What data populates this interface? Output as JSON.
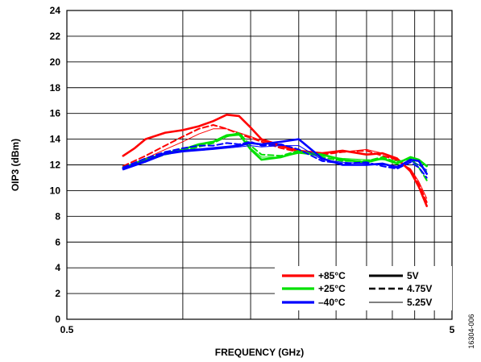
{
  "chart_data": {
    "type": "line",
    "title": "",
    "xlabel": "FREQUENCY (GHz)",
    "ylabel": "OIP3 (dBm)",
    "x_scale": "log",
    "xlim": [
      0.5,
      5
    ],
    "ylim": [
      0,
      24
    ],
    "x_tick_labels": [
      "0.5",
      "5"
    ],
    "y_ticks": [
      0,
      2,
      4,
      6,
      8,
      10,
      12,
      14,
      16,
      18,
      20,
      22,
      24
    ],
    "x_grid_positions": [
      1,
      1.5,
      2,
      2.5,
      3,
      3.5,
      4,
      4.5
    ],
    "grid": true,
    "figure_id": "16304-006",
    "legend": {
      "placement": "bottom-right",
      "temperature": [
        {
          "label": "+85°C",
          "color": "#ff0000"
        },
        {
          "label": "+25°C",
          "color": "#00e000"
        },
        {
          "label": "–40°C",
          "color": "#0000ff"
        }
      ],
      "supply": [
        {
          "label": "5V",
          "style": "solid-thick"
        },
        {
          "label": "4.75V",
          "style": "dashed"
        },
        {
          "label": "5.25V",
          "style": "solid-thin"
        }
      ]
    },
    "series": [
      {
        "temp": "+85°C",
        "supply": "5V",
        "color": "#ff0000",
        "style": "solid-thick",
        "x": [
          0.7,
          0.75,
          0.8,
          0.9,
          1.0,
          1.1,
          1.2,
          1.3,
          1.4,
          1.5,
          1.6,
          1.8,
          2.0,
          2.3,
          2.6,
          3.0,
          3.3,
          3.6,
          3.9,
          4.1,
          4.3
        ],
        "y": [
          12.7,
          13.3,
          14.0,
          14.5,
          14.7,
          15.0,
          15.4,
          15.9,
          15.8,
          14.9,
          14.0,
          13.5,
          13.1,
          12.9,
          13.1,
          12.8,
          12.9,
          12.5,
          11.5,
          10.3,
          8.8
        ]
      },
      {
        "temp": "+85°C",
        "supply": "4.75V",
        "color": "#ff0000",
        "style": "dashed",
        "x": [
          0.7,
          0.8,
          0.9,
          1.0,
          1.1,
          1.2,
          1.3,
          1.4,
          1.5,
          1.6,
          1.8,
          2.0,
          2.3,
          2.6,
          3.0,
          3.3,
          3.6,
          3.9,
          4.1,
          4.3
        ],
        "y": [
          11.9,
          12.7,
          13.5,
          14.2,
          14.8,
          15.1,
          14.8,
          14.4,
          14.1,
          13.8,
          13.3,
          13.0,
          12.8,
          13.0,
          13.1,
          12.7,
          12.4,
          11.6,
          10.5,
          9.1
        ]
      },
      {
        "temp": "+85°C",
        "supply": "5.25V",
        "color": "#ff0000",
        "style": "solid-thin",
        "x": [
          0.7,
          0.8,
          0.9,
          1.0,
          1.1,
          1.2,
          1.3,
          1.4,
          1.5,
          1.6,
          1.8,
          2.0,
          2.3,
          2.6,
          3.0,
          3.3,
          3.6,
          3.9,
          4.1,
          4.3
        ],
        "y": [
          11.8,
          12.5,
          13.2,
          13.8,
          14.4,
          14.8,
          14.8,
          14.5,
          14.2,
          13.9,
          13.4,
          13.0,
          12.9,
          13.0,
          13.2,
          12.9,
          12.3,
          11.7,
          10.7,
          9.4
        ]
      },
      {
        "temp": "+25°C",
        "supply": "5V",
        "color": "#00e000",
        "style": "solid-thick",
        "x": [
          0.7,
          0.8,
          0.9,
          1.0,
          1.1,
          1.2,
          1.3,
          1.4,
          1.5,
          1.6,
          1.8,
          2.0,
          2.3,
          2.6,
          3.0,
          3.3,
          3.6,
          3.9,
          4.1,
          4.3
        ],
        "y": [
          11.8,
          12.4,
          12.9,
          13.2,
          13.6,
          13.8,
          14.3,
          14.4,
          13.2,
          12.4,
          12.6,
          13.0,
          12.8,
          12.4,
          12.2,
          12.5,
          12.1,
          12.6,
          12.4,
          11.9
        ]
      },
      {
        "temp": "+25°C",
        "supply": "4.75V",
        "color": "#00e000",
        "style": "dashed",
        "x": [
          0.7,
          0.8,
          0.9,
          1.0,
          1.1,
          1.2,
          1.3,
          1.4,
          1.5,
          1.6,
          1.8,
          2.0,
          2.3,
          2.6,
          3.0,
          3.3,
          3.6,
          3.9,
          4.1,
          4.3
        ],
        "y": [
          11.7,
          12.3,
          12.8,
          13.1,
          13.4,
          13.7,
          14.2,
          14.5,
          13.5,
          12.8,
          12.7,
          13.1,
          12.6,
          12.3,
          12.3,
          12.6,
          12.2,
          12.5,
          11.8,
          10.8
        ]
      },
      {
        "temp": "+25°C",
        "supply": "5.25V",
        "color": "#00e000",
        "style": "solid-thin",
        "x": [
          0.7,
          0.8,
          0.9,
          1.0,
          1.1,
          1.2,
          1.3,
          1.4,
          1.5,
          1.6,
          1.8,
          2.0,
          2.3,
          2.6,
          3.0,
          3.3,
          3.6,
          3.9,
          4.1,
          4.3
        ],
        "y": [
          11.8,
          12.4,
          12.9,
          13.2,
          13.5,
          13.8,
          14.2,
          14.3,
          13.3,
          12.6,
          12.6,
          12.9,
          12.7,
          12.5,
          12.4,
          12.4,
          12.3,
          12.4,
          12.0,
          11.5
        ]
      },
      {
        "temp": "–40°C",
        "supply": "5V",
        "color": "#0000ff",
        "style": "solid-thick",
        "x": [
          0.7,
          0.8,
          0.9,
          1.0,
          1.1,
          1.2,
          1.3,
          1.4,
          1.5,
          1.6,
          1.8,
          2.0,
          2.3,
          2.6,
          3.0,
          3.3,
          3.6,
          3.9,
          4.1,
          4.3
        ],
        "y": [
          11.7,
          12.3,
          12.9,
          13.1,
          13.2,
          13.3,
          13.4,
          13.5,
          13.7,
          13.6,
          13.8,
          14.0,
          12.5,
          12.0,
          12.0,
          12.1,
          11.8,
          12.4,
          12.3,
          11.3
        ]
      },
      {
        "temp": "–40°C",
        "supply": "4.75V",
        "color": "#0000ff",
        "style": "dashed",
        "x": [
          0.7,
          0.8,
          0.9,
          1.0,
          1.1,
          1.2,
          1.3,
          1.4,
          1.5,
          1.6,
          1.8,
          2.0,
          2.3,
          2.6,
          3.0,
          3.3,
          3.6,
          3.9,
          4.1,
          4.3
        ],
        "y": [
          11.8,
          12.5,
          13.0,
          13.3,
          13.5,
          13.5,
          13.7,
          13.6,
          13.8,
          13.5,
          13.6,
          13.2,
          12.3,
          12.1,
          12.2,
          11.9,
          11.7,
          12.2,
          11.8,
          11.0
        ]
      },
      {
        "temp": "–40°C",
        "supply": "5.25V",
        "color": "#0000ff",
        "style": "solid-thin",
        "x": [
          0.7,
          0.8,
          0.9,
          1.0,
          1.1,
          1.2,
          1.3,
          1.4,
          1.5,
          1.6,
          1.8,
          2.0,
          2.3,
          2.6,
          3.0,
          3.3,
          3.6,
          3.9,
          4.1,
          4.3
        ],
        "y": [
          11.6,
          12.2,
          12.8,
          13.0,
          13.1,
          13.2,
          13.3,
          13.4,
          13.5,
          13.4,
          13.5,
          13.5,
          12.4,
          12.2,
          12.1,
          12.0,
          11.9,
          12.3,
          12.0,
          11.6
        ]
      }
    ]
  }
}
